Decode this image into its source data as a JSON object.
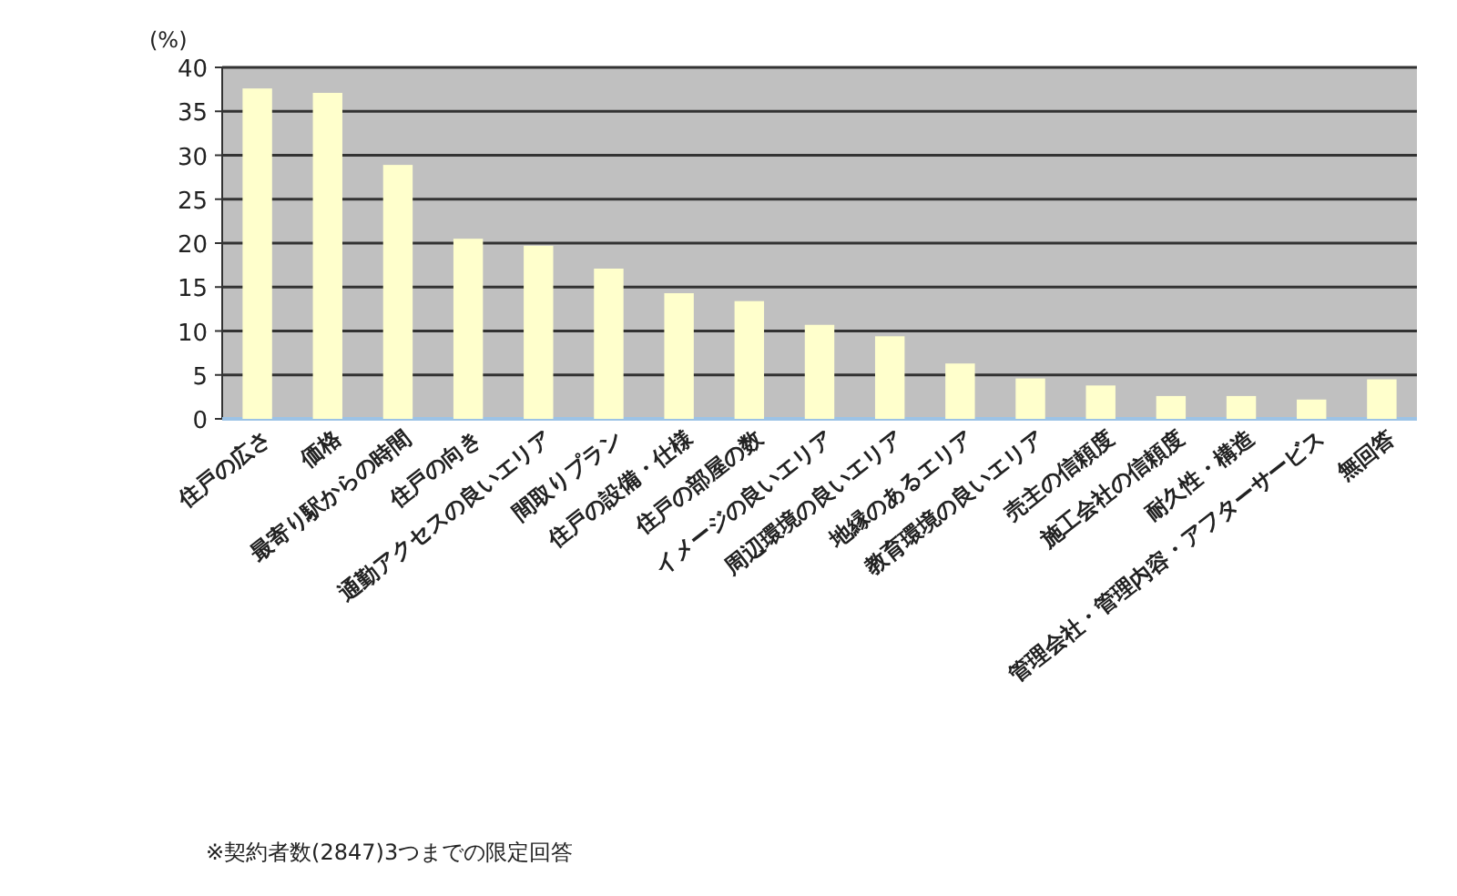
{
  "chart_data": {
    "type": "bar",
    "ylabel": "(%)",
    "categories": [
      "住戸の広さ",
      "価格",
      "最寄り駅からの時間",
      "住戸の向き",
      "通勤アクセスの良いエリア",
      "間取りプラン",
      "住戸の設備・仕様",
      "住戸の部屋の数",
      "イメージの良いエリア",
      "周辺環境の良いエリア",
      "地縁のあるエリア",
      "教育環境の良いエリア",
      "売主の信頼度",
      "施工会社の信頼度",
      "耐久性・構造",
      "管理会社・管理内容・アフターサービス",
      "無回答"
    ],
    "values": [
      37.6,
      37.1,
      28.9,
      20.5,
      19.7,
      17.1,
      14.3,
      13.4,
      10.7,
      9.4,
      6.3,
      4.6,
      3.8,
      2.6,
      2.6,
      2.2,
      4.5
    ],
    "color": "#ffffcc",
    "ylim": [
      0,
      40
    ],
    "yticks": [
      0,
      5,
      10,
      15,
      20,
      25,
      30,
      35,
      40
    ],
    "grid": "y",
    "annotations": [
      "※契約者数(2847)3つまでの限定回答"
    ]
  }
}
